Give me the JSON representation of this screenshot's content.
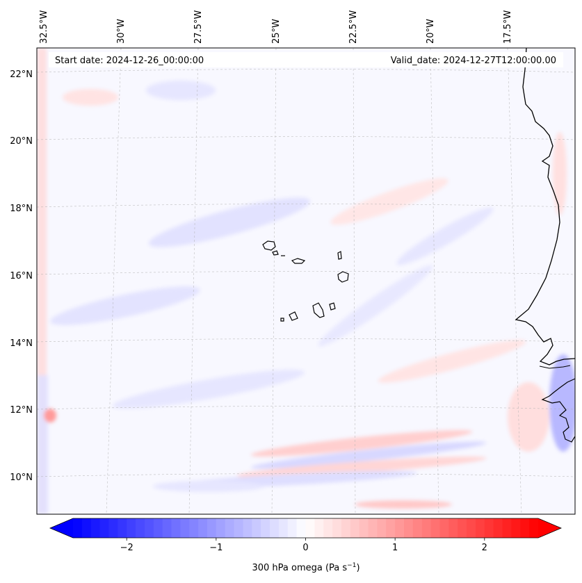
{
  "map": {
    "start_date_label": "Start date: 2024-12-26_00:00:00",
    "valid_date_label": "Valid_date: 2024-12-27T12:00:00.00",
    "lon_labels": [
      "32.5°W",
      "30°W",
      "27.5°W",
      "25°W",
      "22.5°W",
      "20°W",
      "17.5°W"
    ],
    "lat_labels": [
      "22°N",
      "20°N",
      "18°N",
      "16°N",
      "14°N",
      "12°N",
      "10°N"
    ],
    "colors": {
      "land_outline": "#000000",
      "background": "#f8f8ff",
      "gridline": "#b0b0b0",
      "negative_max": "#0000ff",
      "positive_max": "#ff0000"
    }
  },
  "colorbar": {
    "tick_labels": [
      "−2",
      "−1",
      "0",
      "1",
      "2"
    ],
    "tick_values": [
      -2,
      -1,
      0,
      1,
      2
    ],
    "range": [
      -2.6,
      2.6
    ],
    "label_prefix": "300 hPa omega (Pa s",
    "label_exp": "−1",
    "label_suffix": ")"
  }
}
